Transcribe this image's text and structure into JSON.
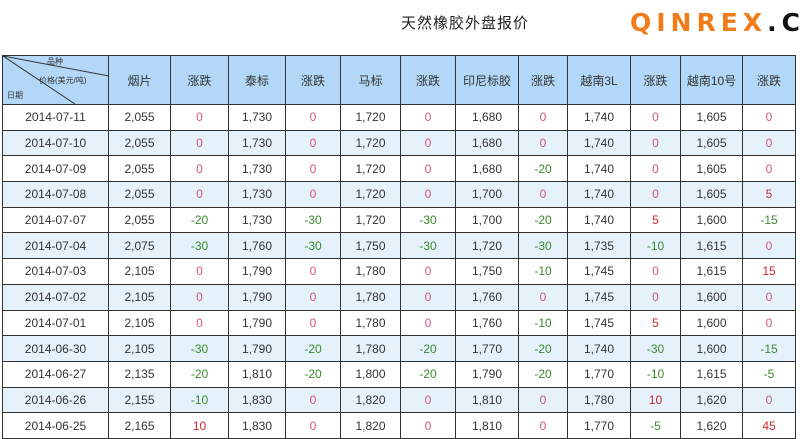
{
  "title": "天然橡胶外盘报价",
  "header": {
    "corner_top": "品种",
    "corner_mid": "价格(美元/吨)",
    "corner_bottom": "日期",
    "columns": [
      "烟片",
      "涨跌",
      "泰标",
      "涨跌",
      "马标",
      "涨跌",
      "印尼标胶",
      "涨跌",
      "越南3L",
      "涨跌",
      "越南10号",
      "涨跌"
    ]
  },
  "rows": [
    [
      "2014-07-11",
      "2,055",
      "0",
      "1,730",
      "0",
      "1,720",
      "0",
      "1,680",
      "0",
      "1,740",
      "0",
      "1,605",
      "0"
    ],
    [
      "2014-07-10",
      "2,055",
      "0",
      "1,730",
      "0",
      "1,720",
      "0",
      "1,680",
      "0",
      "1,740",
      "0",
      "1,605",
      "0"
    ],
    [
      "2014-07-09",
      "2,055",
      "0",
      "1,730",
      "0",
      "1,720",
      "0",
      "1,680",
      "-20",
      "1,740",
      "0",
      "1,605",
      "0"
    ],
    [
      "2014-07-08",
      "2,055",
      "0",
      "1,730",
      "0",
      "1,720",
      "0",
      "1,700",
      "0",
      "1,740",
      "0",
      "1,605",
      "5"
    ],
    [
      "2014-07-07",
      "2,055",
      "-20",
      "1,730",
      "-30",
      "1,720",
      "-30",
      "1,700",
      "-20",
      "1,740",
      "5",
      "1,600",
      "-15"
    ],
    [
      "2014-07-04",
      "2,075",
      "-30",
      "1,760",
      "-30",
      "1,750",
      "-30",
      "1,720",
      "-30",
      "1,735",
      "-10",
      "1,615",
      "0"
    ],
    [
      "2014-07-03",
      "2,105",
      "0",
      "1,790",
      "0",
      "1,780",
      "0",
      "1,750",
      "-10",
      "1,745",
      "0",
      "1,615",
      "15"
    ],
    [
      "2014-07-02",
      "2,105",
      "0",
      "1,790",
      "0",
      "1,780",
      "0",
      "1,760",
      "0",
      "1,745",
      "0",
      "1,600",
      "0"
    ],
    [
      "2014-07-01",
      "2,105",
      "0",
      "1,790",
      "0",
      "1,780",
      "0",
      "1,760",
      "-10",
      "1,745",
      "5",
      "1,600",
      "0"
    ],
    [
      "2014-06-30",
      "2,105",
      "-30",
      "1,790",
      "-20",
      "1,780",
      "-20",
      "1,770",
      "-20",
      "1,740",
      "-30",
      "1,600",
      "-15"
    ],
    [
      "2014-06-27",
      "2,135",
      "-20",
      "1,810",
      "-20",
      "1,800",
      "-20",
      "1,790",
      "-20",
      "1,770",
      "-10",
      "1,615",
      "-5"
    ],
    [
      "2014-06-26",
      "2,155",
      "-10",
      "1,830",
      "0",
      "1,820",
      "0",
      "1,810",
      "0",
      "1,780",
      "10",
      "1,620",
      "0"
    ],
    [
      "2014-06-25",
      "2,165",
      "10",
      "1,830",
      "0",
      "1,820",
      "0",
      "1,810",
      "0",
      "1,770",
      "-5",
      "1,620",
      "45"
    ]
  ],
  "colors": {
    "up": "#d0262e",
    "zero": "#d2557a",
    "down": "#3a8a2c",
    "header_bg": "#b3d8f7",
    "alt_row": "#e6f2fb"
  },
  "watermark": {
    "main": "QINREX",
    "suffix": ".CN"
  }
}
